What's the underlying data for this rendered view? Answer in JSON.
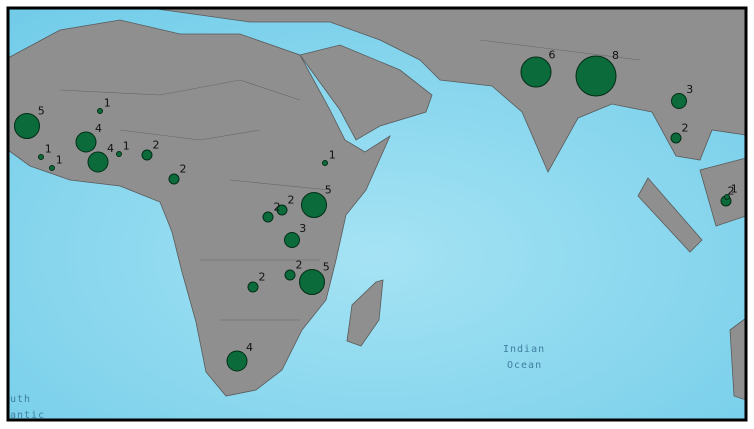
{
  "points": [
    1,
    5,
    4,
    4,
    1,
    2,
    1,
    1,
    2,
    1,
    5,
    2,
    2,
    3,
    2,
    5,
    2,
    4,
    6,
    8,
    3,
    2,
    2,
    1
  ],
  "ocean_labels": {
    "indian": [
      "Indian",
      "Ocean"
    ],
    "south_atlantic": [
      "uth",
      "antic"
    ]
  }
}
